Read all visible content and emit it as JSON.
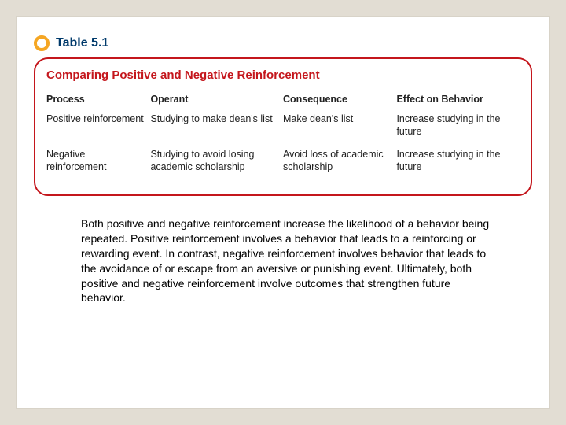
{
  "table": {
    "number": "Table 5.1",
    "title": "Comparing Positive and Negative Reinforcement",
    "columns": [
      "Process",
      "Operant",
      "Consequence",
      "Effect on Behavior"
    ],
    "rows": [
      [
        "Positive reinforcement",
        "Studying to make dean's list",
        "Make dean's list",
        "Increase studying in the future"
      ],
      [
        "Negative reinforcement",
        "Studying to avoid losing academic scholarship",
        "Avoid loss of academic scholarship",
        "Increase studying in the future"
      ]
    ],
    "border_color": "#c4161c",
    "accent_color": "#f5a623",
    "number_color": "#003a6b"
  },
  "caption": "Both positive and negative reinforcement increase the likelihood of a behavior being repeated. Positive reinforcement involves a behavior that leads to a reinforcing or rewarding event. In contrast, negative reinforcement involves behavior that leads to the avoidance of or escape from an aversive or punishing event. Ultimately, both positive and negative reinforcement involve outcomes that strengthen future behavior."
}
